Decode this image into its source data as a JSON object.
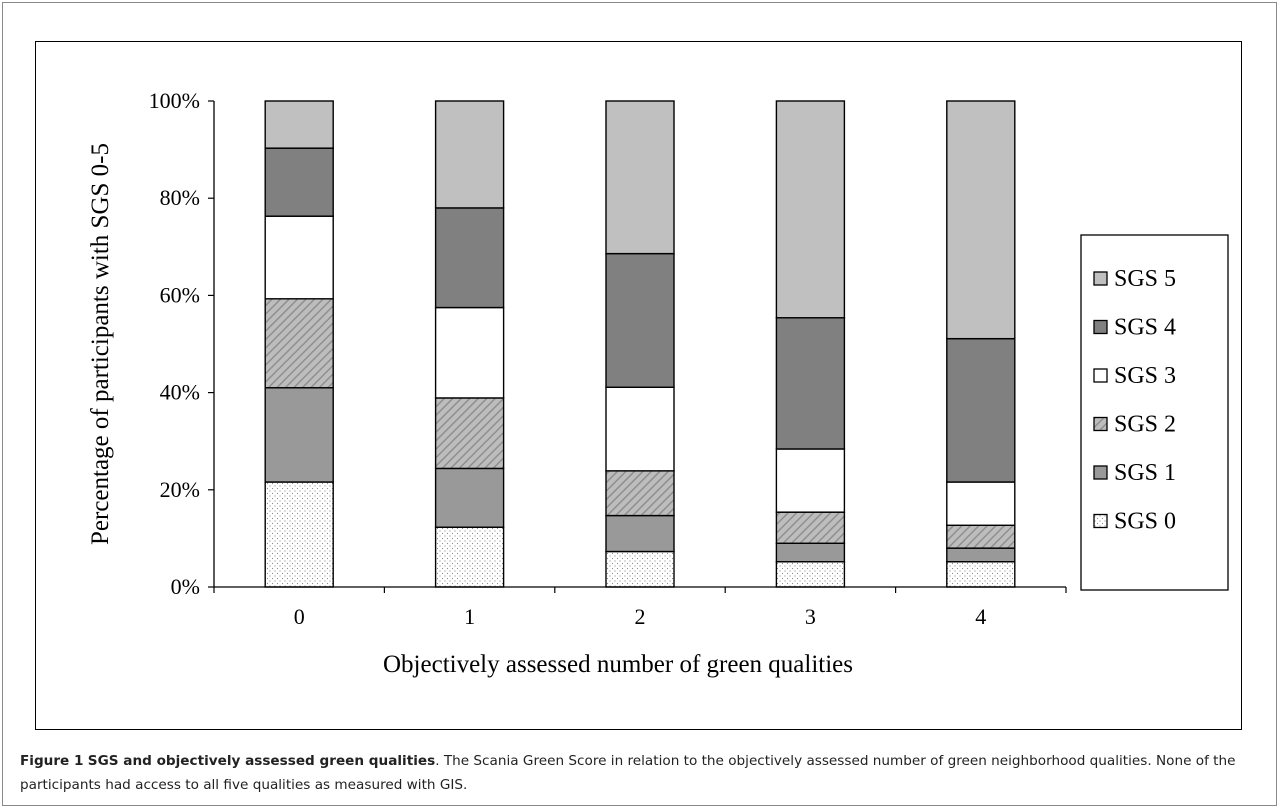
{
  "caption": {
    "label": "Figure 1",
    "title": "SGS and objectively assessed green qualities",
    "text": ". The Scania Green Score in relation to the objectively assessed number of green neighborhood qualities. None of the participants had access to all five qualities as measured with GIS."
  },
  "chart_data": {
    "type": "bar",
    "stacked": true,
    "normalized": true,
    "xlabel": "Objectively assessed number of green qualities",
    "ylabel": "Percentage of participants with SGS 0-5",
    "categories": [
      "0",
      "1",
      "2",
      "3",
      "4"
    ],
    "ylim": [
      0,
      100
    ],
    "yticks": [
      "0%",
      "20%",
      "40%",
      "60%",
      "80%",
      "100%"
    ],
    "legend_position": "right",
    "series": [
      {
        "name": "SGS 0",
        "values": [
          21.6,
          12.3,
          7.3,
          5.2,
          5.2
        ],
        "color": "#ffffff",
        "pattern": "dots"
      },
      {
        "name": "SGS 1",
        "values": [
          19.4,
          12.1,
          7.4,
          3.8,
          2.8
        ],
        "color": "#999999",
        "pattern": "solid"
      },
      {
        "name": "SGS 2",
        "values": [
          18.3,
          14.5,
          9.2,
          6.4,
          4.7
        ],
        "color": "#b4b4b4",
        "pattern": "hatch"
      },
      {
        "name": "SGS 3",
        "values": [
          17.0,
          18.6,
          17.2,
          13.0,
          8.9
        ],
        "color": "#ffffff",
        "pattern": "solid"
      },
      {
        "name": "SGS 4",
        "values": [
          14.0,
          20.5,
          27.5,
          27.0,
          29.5
        ],
        "color": "#808080",
        "pattern": "solid"
      },
      {
        "name": "SGS 5",
        "values": [
          9.7,
          22.0,
          31.4,
          44.6,
          48.9
        ],
        "color": "#c0c0c0",
        "pattern": "solid"
      }
    ]
  }
}
